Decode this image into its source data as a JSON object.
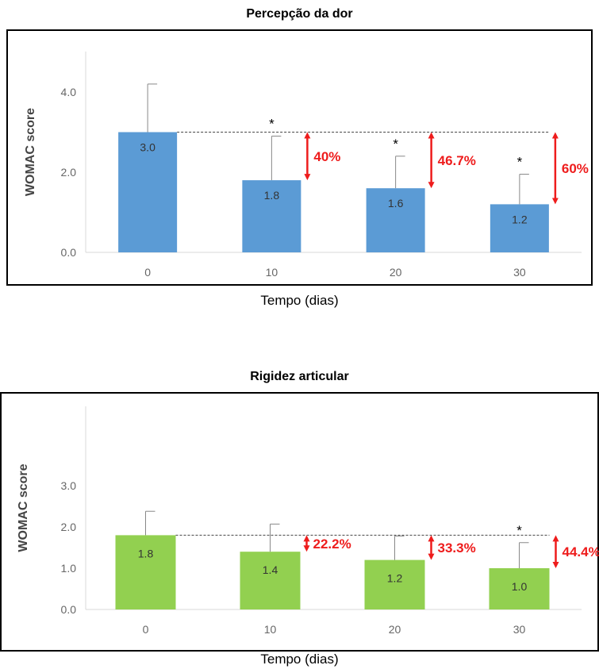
{
  "chart_data": [
    {
      "type": "bar",
      "title": "Percepção da dor",
      "xlabel": "Tempo (dias)",
      "ylabel": "WOMAC score",
      "categories": [
        "0",
        "10",
        "20",
        "30"
      ],
      "values": [
        3.0,
        1.8,
        1.6,
        1.2
      ],
      "value_labels": [
        "3.0",
        "1.8",
        "1.6",
        "1.2"
      ],
      "error_upper": [
        4.2,
        2.9,
        2.4,
        1.95
      ],
      "significance": [
        "",
        "*",
        "*",
        "*"
      ],
      "reductions": [
        "",
        "40%",
        "46.7%",
        "60%"
      ],
      "baseline": 3.0,
      "yticks": [
        0,
        2,
        4
      ],
      "ytick_labels": [
        "0.0",
        "2.0",
        "4.0"
      ],
      "ylim": [
        0,
        5
      ],
      "bar_color": "#5b9bd5",
      "arrow_color": "#ee1c1c",
      "grid": false
    },
    {
      "type": "bar",
      "title": "Rigidez articular",
      "xlabel": "Tempo (dias)",
      "ylabel": "WOMAC score",
      "categories": [
        "0",
        "10",
        "20",
        "30"
      ],
      "values": [
        1.8,
        1.4,
        1.2,
        1.0
      ],
      "value_labels": [
        "1.8",
        "1.4",
        "1.2",
        "1.0"
      ],
      "error_upper": [
        2.38,
        2.07,
        1.78,
        1.62
      ],
      "significance": [
        "",
        "",
        "",
        "*"
      ],
      "reductions": [
        "",
        "22.2%",
        "33.3%",
        "44.4%"
      ],
      "baseline": 1.8,
      "yticks": [
        0,
        1,
        2,
        3
      ],
      "ytick_labels": [
        "0.0",
        "1.0",
        "2.0",
        "3.0"
      ],
      "ylim": [
        0,
        3
      ],
      "bar_color": "#92d050",
      "arrow_color": "#ee1c1c",
      "grid": false
    }
  ]
}
